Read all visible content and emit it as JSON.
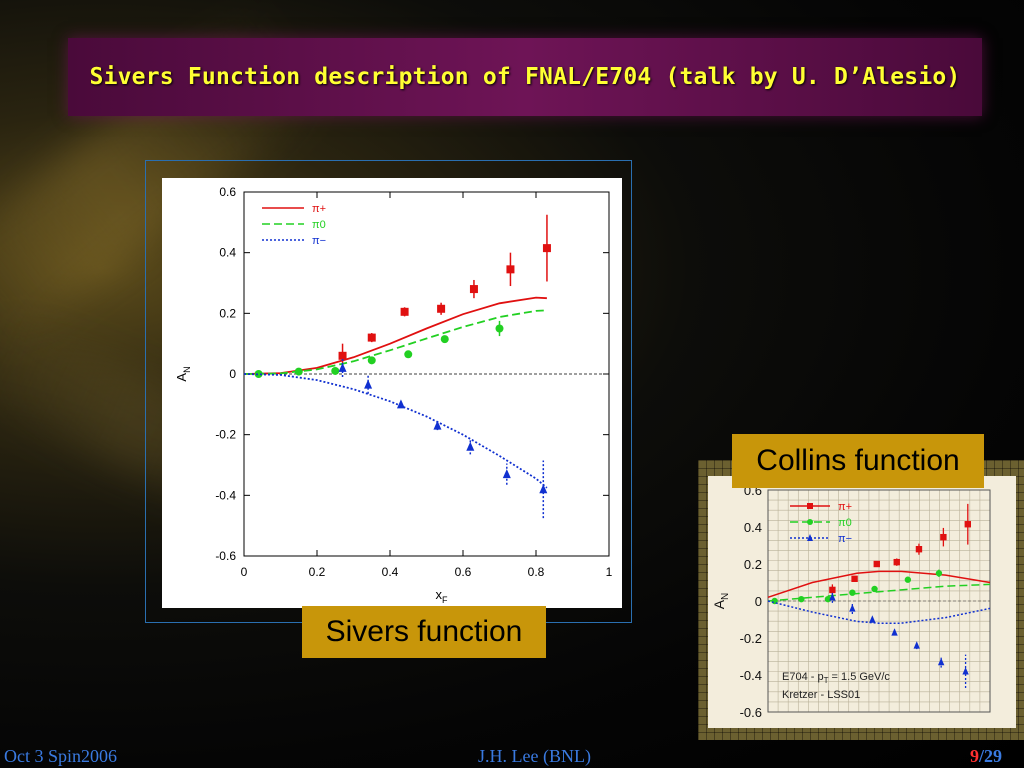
{
  "slide": {
    "title": "Sivers Function description of FNAL/E704 (talk by U. D’Alesio)",
    "sivers_label": "Sivers function",
    "collins_label": "Collins function",
    "footer_left": "Oct 3 Spin2006",
    "footer_center": "J.H. Lee (BNL)",
    "footer_page": "9",
    "footer_total": "/29"
  },
  "chart_data": [
    {
      "type": "line",
      "ylabel": "A",
      "ylabel_sub": "N",
      "xlabel": "x",
      "xlabel_sub": "F",
      "xlim": [
        0,
        1
      ],
      "ylim": [
        -0.6,
        0.6
      ],
      "xticks": [
        "0",
        "0.2",
        "0.4",
        "0.6",
        "0.8",
        "1"
      ],
      "yticks": [
        "0.6",
        "0.4",
        "0.2",
        "0",
        "-0.2",
        "-0.4",
        "-0.6"
      ],
      "legend_position": "top-left",
      "series": [
        {
          "name": "π+",
          "color": "#e01010",
          "dash": "solid",
          "marker": "square",
          "curve_x": [
            0,
            0.1,
            0.2,
            0.3,
            0.4,
            0.5,
            0.6,
            0.7,
            0.8,
            0.83
          ],
          "curve_y": [
            0,
            0.003,
            0.02,
            0.055,
            0.1,
            0.15,
            0.197,
            0.233,
            0.252,
            0.25
          ],
          "points": [
            {
              "x": 0.27,
              "y": 0.06,
              "err": 0.04
            },
            {
              "x": 0.35,
              "y": 0.12,
              "err": 0.015
            },
            {
              "x": 0.44,
              "y": 0.205,
              "err": 0.015
            },
            {
              "x": 0.54,
              "y": 0.215,
              "err": 0.02
            },
            {
              "x": 0.63,
              "y": 0.28,
              "err": 0.03
            },
            {
              "x": 0.73,
              "y": 0.345,
              "err": 0.055
            },
            {
              "x": 0.83,
              "y": 0.415,
              "err": 0.11
            }
          ]
        },
        {
          "name": "π0",
          "color": "#22d022",
          "dash": "dashed",
          "marker": "circle",
          "curve_x": [
            0,
            0.1,
            0.2,
            0.3,
            0.4,
            0.5,
            0.6,
            0.7,
            0.8,
            0.83
          ],
          "curve_y": [
            0,
            0.002,
            0.015,
            0.042,
            0.078,
            0.117,
            0.155,
            0.188,
            0.208,
            0.21
          ],
          "points": [
            {
              "x": 0.04,
              "y": 0.0,
              "err": 0.0
            },
            {
              "x": 0.15,
              "y": 0.008,
              "err": 0.0
            },
            {
              "x": 0.25,
              "y": 0.01,
              "err": 0.0
            },
            {
              "x": 0.35,
              "y": 0.045,
              "err": 0.0
            },
            {
              "x": 0.45,
              "y": 0.065,
              "err": 0.0
            },
            {
              "x": 0.55,
              "y": 0.115,
              "err": 0.01
            },
            {
              "x": 0.7,
              "y": 0.15,
              "err": 0.025
            }
          ]
        },
        {
          "name": "π−",
          "color": "#1030d0",
          "dash": "dotted",
          "marker": "triangle",
          "curve_x": [
            0,
            0.1,
            0.2,
            0.3,
            0.4,
            0.5,
            0.6,
            0.7,
            0.8,
            0.83
          ],
          "curve_y": [
            0,
            -0.003,
            -0.02,
            -0.05,
            -0.09,
            -0.14,
            -0.2,
            -0.27,
            -0.345,
            -0.375
          ],
          "points": [
            {
              "x": 0.27,
              "y": 0.02,
              "err": 0.03
            },
            {
              "x": 0.34,
              "y": -0.035,
              "err": 0.03
            },
            {
              "x": 0.43,
              "y": -0.1,
              "err": 0.01
            },
            {
              "x": 0.53,
              "y": -0.17,
              "err": 0.015
            },
            {
              "x": 0.62,
              "y": -0.24,
              "err": 0.025
            },
            {
              "x": 0.72,
              "y": -0.33,
              "err": 0.035
            },
            {
              "x": 0.82,
              "y": -0.38,
              "err": 0.095
            }
          ]
        }
      ]
    },
    {
      "type": "line",
      "ylabel": "A",
      "ylabel_sub": "N",
      "xlim": [
        0,
        1
      ],
      "ylim": [
        -0.6,
        0.6
      ],
      "yticks": [
        "0.6",
        "0.4",
        "0.2",
        "0",
        "-0.2",
        "-0.4",
        "-0.6"
      ],
      "legend_position": "top-left",
      "annotation_line1": "E704 - p",
      "annotation_line1_sub": "T",
      "annotation_line1_rest": " = 1.5 GeV/c",
      "annotation_line2": "Kretzer - LSS01",
      "series": [
        {
          "name": "π+",
          "color": "#e01010",
          "dash": "solid",
          "marker": "square",
          "curve_x": [
            0,
            0.2,
            0.4,
            0.5,
            0.6,
            0.8,
            1.0
          ],
          "curve_y": [
            0.02,
            0.1,
            0.15,
            0.16,
            0.16,
            0.14,
            0.1
          ],
          "points": [
            {
              "x": 0.29,
              "y": 0.06,
              "err": 0.03
            },
            {
              "x": 0.39,
              "y": 0.12,
              "err": 0.015
            },
            {
              "x": 0.49,
              "y": 0.2,
              "err": 0.015
            },
            {
              "x": 0.58,
              "y": 0.21,
              "err": 0.02
            },
            {
              "x": 0.68,
              "y": 0.28,
              "err": 0.03
            },
            {
              "x": 0.79,
              "y": 0.345,
              "err": 0.05
            },
            {
              "x": 0.9,
              "y": 0.415,
              "err": 0.11
            }
          ]
        },
        {
          "name": "π0",
          "color": "#22d022",
          "dash": "dashed",
          "marker": "circle",
          "curve_x": [
            0,
            0.2,
            0.4,
            0.6,
            0.8,
            1.0
          ],
          "curve_y": [
            0.0,
            0.02,
            0.04,
            0.06,
            0.08,
            0.09
          ],
          "points": [
            {
              "x": 0.03,
              "y": 0.0,
              "err": 0.0
            },
            {
              "x": 0.15,
              "y": 0.01,
              "err": 0.0
            },
            {
              "x": 0.27,
              "y": 0.01,
              "err": 0.0
            },
            {
              "x": 0.38,
              "y": 0.045,
              "err": 0.0
            },
            {
              "x": 0.48,
              "y": 0.065,
              "err": 0.0
            },
            {
              "x": 0.63,
              "y": 0.115,
              "err": 0.01
            },
            {
              "x": 0.77,
              "y": 0.15,
              "err": 0.02
            }
          ]
        },
        {
          "name": "π−",
          "color": "#1030d0",
          "dash": "dotted",
          "marker": "triangle",
          "curve_x": [
            0,
            0.2,
            0.4,
            0.5,
            0.6,
            0.8,
            1.0
          ],
          "curve_y": [
            0.0,
            -0.06,
            -0.11,
            -0.12,
            -0.12,
            -0.09,
            -0.04
          ],
          "points": [
            {
              "x": 0.29,
              "y": 0.02,
              "err": 0.03
            },
            {
              "x": 0.38,
              "y": -0.04,
              "err": 0.03
            },
            {
              "x": 0.47,
              "y": -0.1,
              "err": 0.01
            },
            {
              "x": 0.57,
              "y": -0.17,
              "err": 0.015
            },
            {
              "x": 0.67,
              "y": -0.24,
              "err": 0.02
            },
            {
              "x": 0.78,
              "y": -0.33,
              "err": 0.03
            },
            {
              "x": 0.89,
              "y": -0.38,
              "err": 0.09
            }
          ]
        }
      ]
    }
  ]
}
